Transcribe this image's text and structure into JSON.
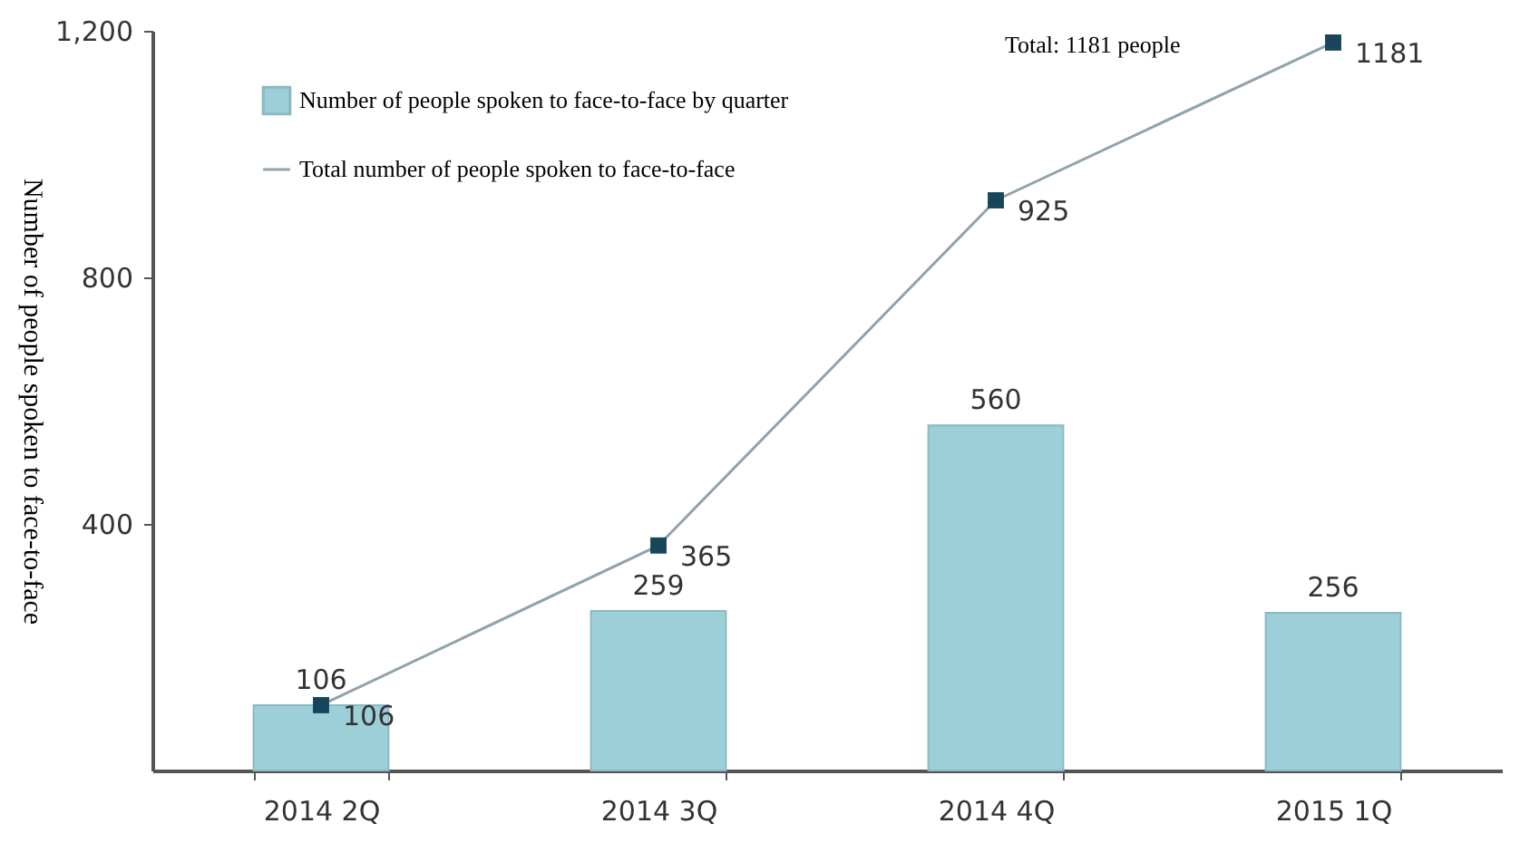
{
  "chart_data": {
    "type": "bar",
    "ylabel": "Number of people spoken to face-to-face",
    "categories": [
      "2014 2Q",
      "2014 3Q",
      "2014 4Q",
      "2015 1Q"
    ],
    "series": [
      {
        "name": "Number of people spoken to face-to-face by quarter",
        "color": "#9ccfd8",
        "values": [
          106,
          259,
          560,
          256
        ]
      },
      {
        "name": "Total number of people spoken to face-to-face",
        "type": "line",
        "color": "#8fa3aa",
        "values": [
          106,
          365,
          925,
          1181
        ]
      }
    ],
    "ylim": [
      0,
      1200
    ],
    "yticks": [
      400,
      800,
      {
        "value": 1200,
        "label": "1,200"
      }
    ],
    "grid": false,
    "legend": "top left",
    "marker": "square",
    "line_style": "solid",
    "data_labels": true,
    "annotations": [
      "Total: 1181 people"
    ]
  }
}
